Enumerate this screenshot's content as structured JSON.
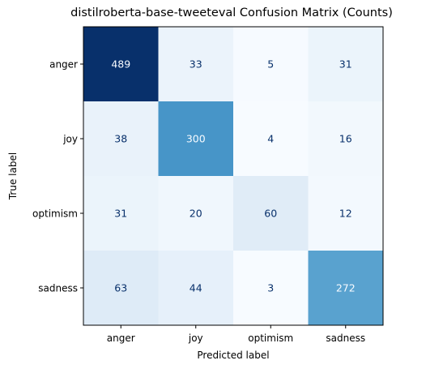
{
  "chart_data": {
    "type": "heatmap",
    "title": "distilroberta-base-tweeteval Confusion Matrix (Counts)",
    "xlabel": "Predicted label",
    "ylabel": "True label",
    "x_categories": [
      "anger",
      "joy",
      "optimism",
      "sadness"
    ],
    "y_categories": [
      "anger",
      "joy",
      "optimism",
      "sadness"
    ],
    "values": [
      [
        489,
        33,
        5,
        31
      ],
      [
        38,
        300,
        4,
        16
      ],
      [
        31,
        20,
        60,
        12
      ],
      [
        63,
        44,
        3,
        272
      ]
    ],
    "colormap": "Blues",
    "vmin": 3,
    "vmax": 489,
    "colors": {
      "low": "#f7fbff",
      "high": "#08306b",
      "dark_text": "#08306b",
      "light_text": "#f7fbff"
    }
  }
}
